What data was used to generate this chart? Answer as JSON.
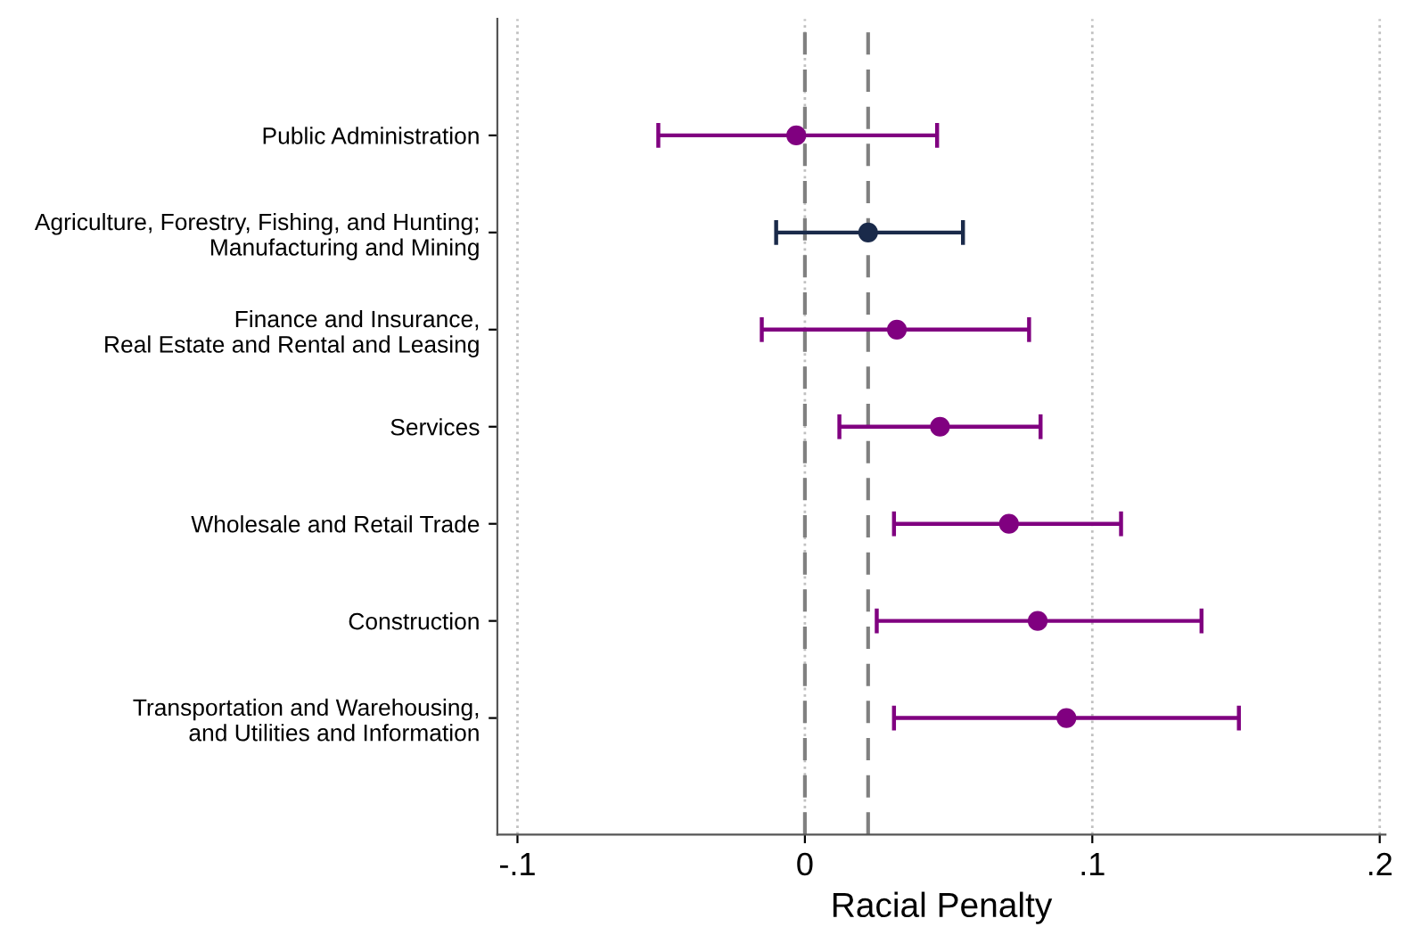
{
  "chart_data": {
    "type": "scatter",
    "orientation": "horizontal",
    "xlabel": "Racial Penalty",
    "categories": [
      "Public Administration",
      "Agriculture, Forestry, Fishing, and Hunting;\nManufacturing and Mining",
      "Finance and Insurance,\nReal Estate and Rental and Leasing",
      "Services",
      "Wholesale and Retail Trade",
      "Construction",
      "Transportation and Warehousing,\nand Utilities and Information"
    ],
    "values": [
      -0.003,
      0.022,
      0.032,
      0.047,
      0.071,
      0.081,
      0.091
    ],
    "errors": [
      [
        -0.051,
        0.046
      ],
      [
        -0.01,
        0.055
      ],
      [
        -0.015,
        0.078
      ],
      [
        0.012,
        0.082
      ],
      [
        0.031,
        0.11
      ],
      [
        0.025,
        0.138
      ],
      [
        0.031,
        0.151
      ]
    ],
    "colors": [
      "#800080",
      "#1a2a4a",
      "#800080",
      "#800080",
      "#800080",
      "#800080",
      "#800080"
    ],
    "xlim": [
      -0.107,
      0.202
    ],
    "xticks": [
      {
        "value": -0.1,
        "label": "-.1"
      },
      0,
      {
        "value": 0.1,
        "label": ".1"
      },
      {
        "value": 0.2,
        "label": ".2"
      }
    ],
    "ref_lines": [
      {
        "axis": "x",
        "value": 0,
        "color": "#808080",
        "line_style": "dashed"
      },
      {
        "axis": "x",
        "value": 0.022,
        "color": "#808080",
        "line_style": "dashed"
      }
    ],
    "grid": "x",
    "marker": "circle"
  }
}
